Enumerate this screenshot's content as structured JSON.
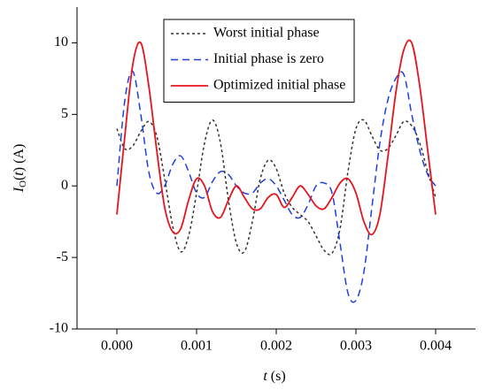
{
  "chart_data": {
    "type": "line",
    "x_label": [
      "t",
      " (s)"
    ],
    "y_label": [
      "I",
      "O",
      "(",
      "t",
      ") (A)"
    ],
    "x": [
      0,
      0.0001,
      0.0002,
      0.0003,
      0.0004,
      0.0005,
      0.0006,
      0.0007,
      0.0008,
      0.0009,
      0.001,
      0.0011,
      0.0012,
      0.0013,
      0.0014,
      0.0015,
      0.0016,
      0.0017,
      0.0018,
      0.0019,
      0.002,
      0.0021,
      0.0022,
      0.0023,
      0.0024,
      0.0025,
      0.0026,
      0.0027,
      0.0028,
      0.0029,
      0.003,
      0.0031,
      0.0032,
      0.0033,
      0.0034,
      0.0035,
      0.0036,
      0.0037,
      0.0038,
      0.0039,
      0.004
    ],
    "series": [
      {
        "name": "Worst initial phase",
        "color": "#333333",
        "dash": "3,3",
        "values": [
          4,
          2.6,
          2.8,
          3.8,
          4.5,
          3.5,
          0.5,
          -2.8,
          -4.6,
          -3.5,
          -0.5,
          3,
          4.6,
          3,
          -1,
          -4,
          -4.6,
          -2.5,
          0.5,
          1.8,
          1.2,
          -0.5,
          -1.5,
          -2,
          -2.5,
          -3.5,
          -4.5,
          -4.7,
          -3,
          1,
          4,
          4.6,
          3.5,
          2.5,
          2.6,
          3.5,
          4.5,
          4.2,
          3,
          1,
          -0.8
        ]
      },
      {
        "name": "Initial phase is zero",
        "color": "#1f3fe0",
        "dash": "8,5",
        "values": [
          0,
          6,
          8,
          5,
          1,
          -0.5,
          0,
          1.5,
          2.1,
          1,
          -0.5,
          -0.8,
          0.3,
          1,
          0.8,
          0,
          -0.5,
          -0.5,
          0.2,
          0.5,
          0,
          -1,
          -2,
          -2.2,
          -1.3,
          0,
          0.2,
          -0.5,
          -4,
          -7.5,
          -8,
          -6,
          -1.5,
          3,
          6,
          7.5,
          7.8,
          5,
          2.5,
          0.8,
          0
        ]
      },
      {
        "name": "Optimized initial phase",
        "color": "#e8141c",
        "dash": "",
        "values": [
          -2,
          3.5,
          8.5,
          10,
          7,
          2.5,
          -1.5,
          -3.2,
          -3,
          -1,
          0.5,
          0,
          -1.8,
          -2.2,
          -1,
          0,
          -0.8,
          -1.6,
          -1.6,
          -0.8,
          -0.6,
          -1.5,
          -0.8,
          0,
          -0.6,
          -1.4,
          -1.6,
          -0.8,
          0.2,
          0.5,
          -0.5,
          -2.5,
          -3.4,
          -2,
          2,
          6.5,
          9.5,
          10,
          7,
          2.5,
          -2
        ]
      }
    ],
    "xlim": [
      -0.0005,
      0.0045
    ],
    "xticks": [
      {
        "value": 0,
        "label": "0.000"
      },
      {
        "value": 0.001,
        "label": "0.001"
      },
      {
        "value": 0.002,
        "label": "0.002"
      },
      {
        "value": 0.003,
        "label": "0.003"
      },
      {
        "value": 0.004,
        "label": "0.004"
      }
    ],
    "ylim": [
      -10,
      12.5
    ],
    "yticks": [
      -10,
      -5,
      0,
      5,
      10
    ],
    "legend": "upper center"
  }
}
